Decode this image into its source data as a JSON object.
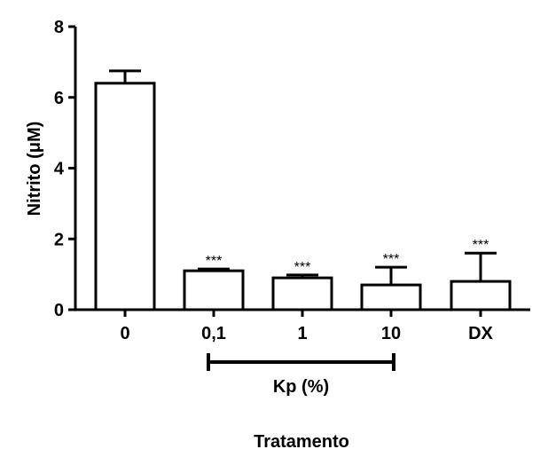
{
  "chart_data": {
    "type": "bar",
    "categories": [
      "0",
      "0,1",
      "1",
      "10",
      "DX"
    ],
    "values": [
      6.4,
      1.1,
      0.9,
      0.7,
      0.8
    ],
    "errors": [
      0.35,
      0.05,
      0.08,
      0.5,
      0.8
    ],
    "significance": [
      "",
      "***",
      "***",
      "***",
      "***"
    ],
    "ylabel": "Nitrito (μM)",
    "xlabel": "Tratamento",
    "ylim": [
      0,
      8
    ],
    "yticks": [
      "0",
      "2",
      "4",
      "6",
      "8"
    ],
    "group_bracket": {
      "label": "Kp (%)",
      "from_category": "0,1",
      "to_category": "10"
    },
    "grid": false,
    "colors": {
      "bar_fill": "#ffffff",
      "bar_stroke": "#000000"
    }
  }
}
